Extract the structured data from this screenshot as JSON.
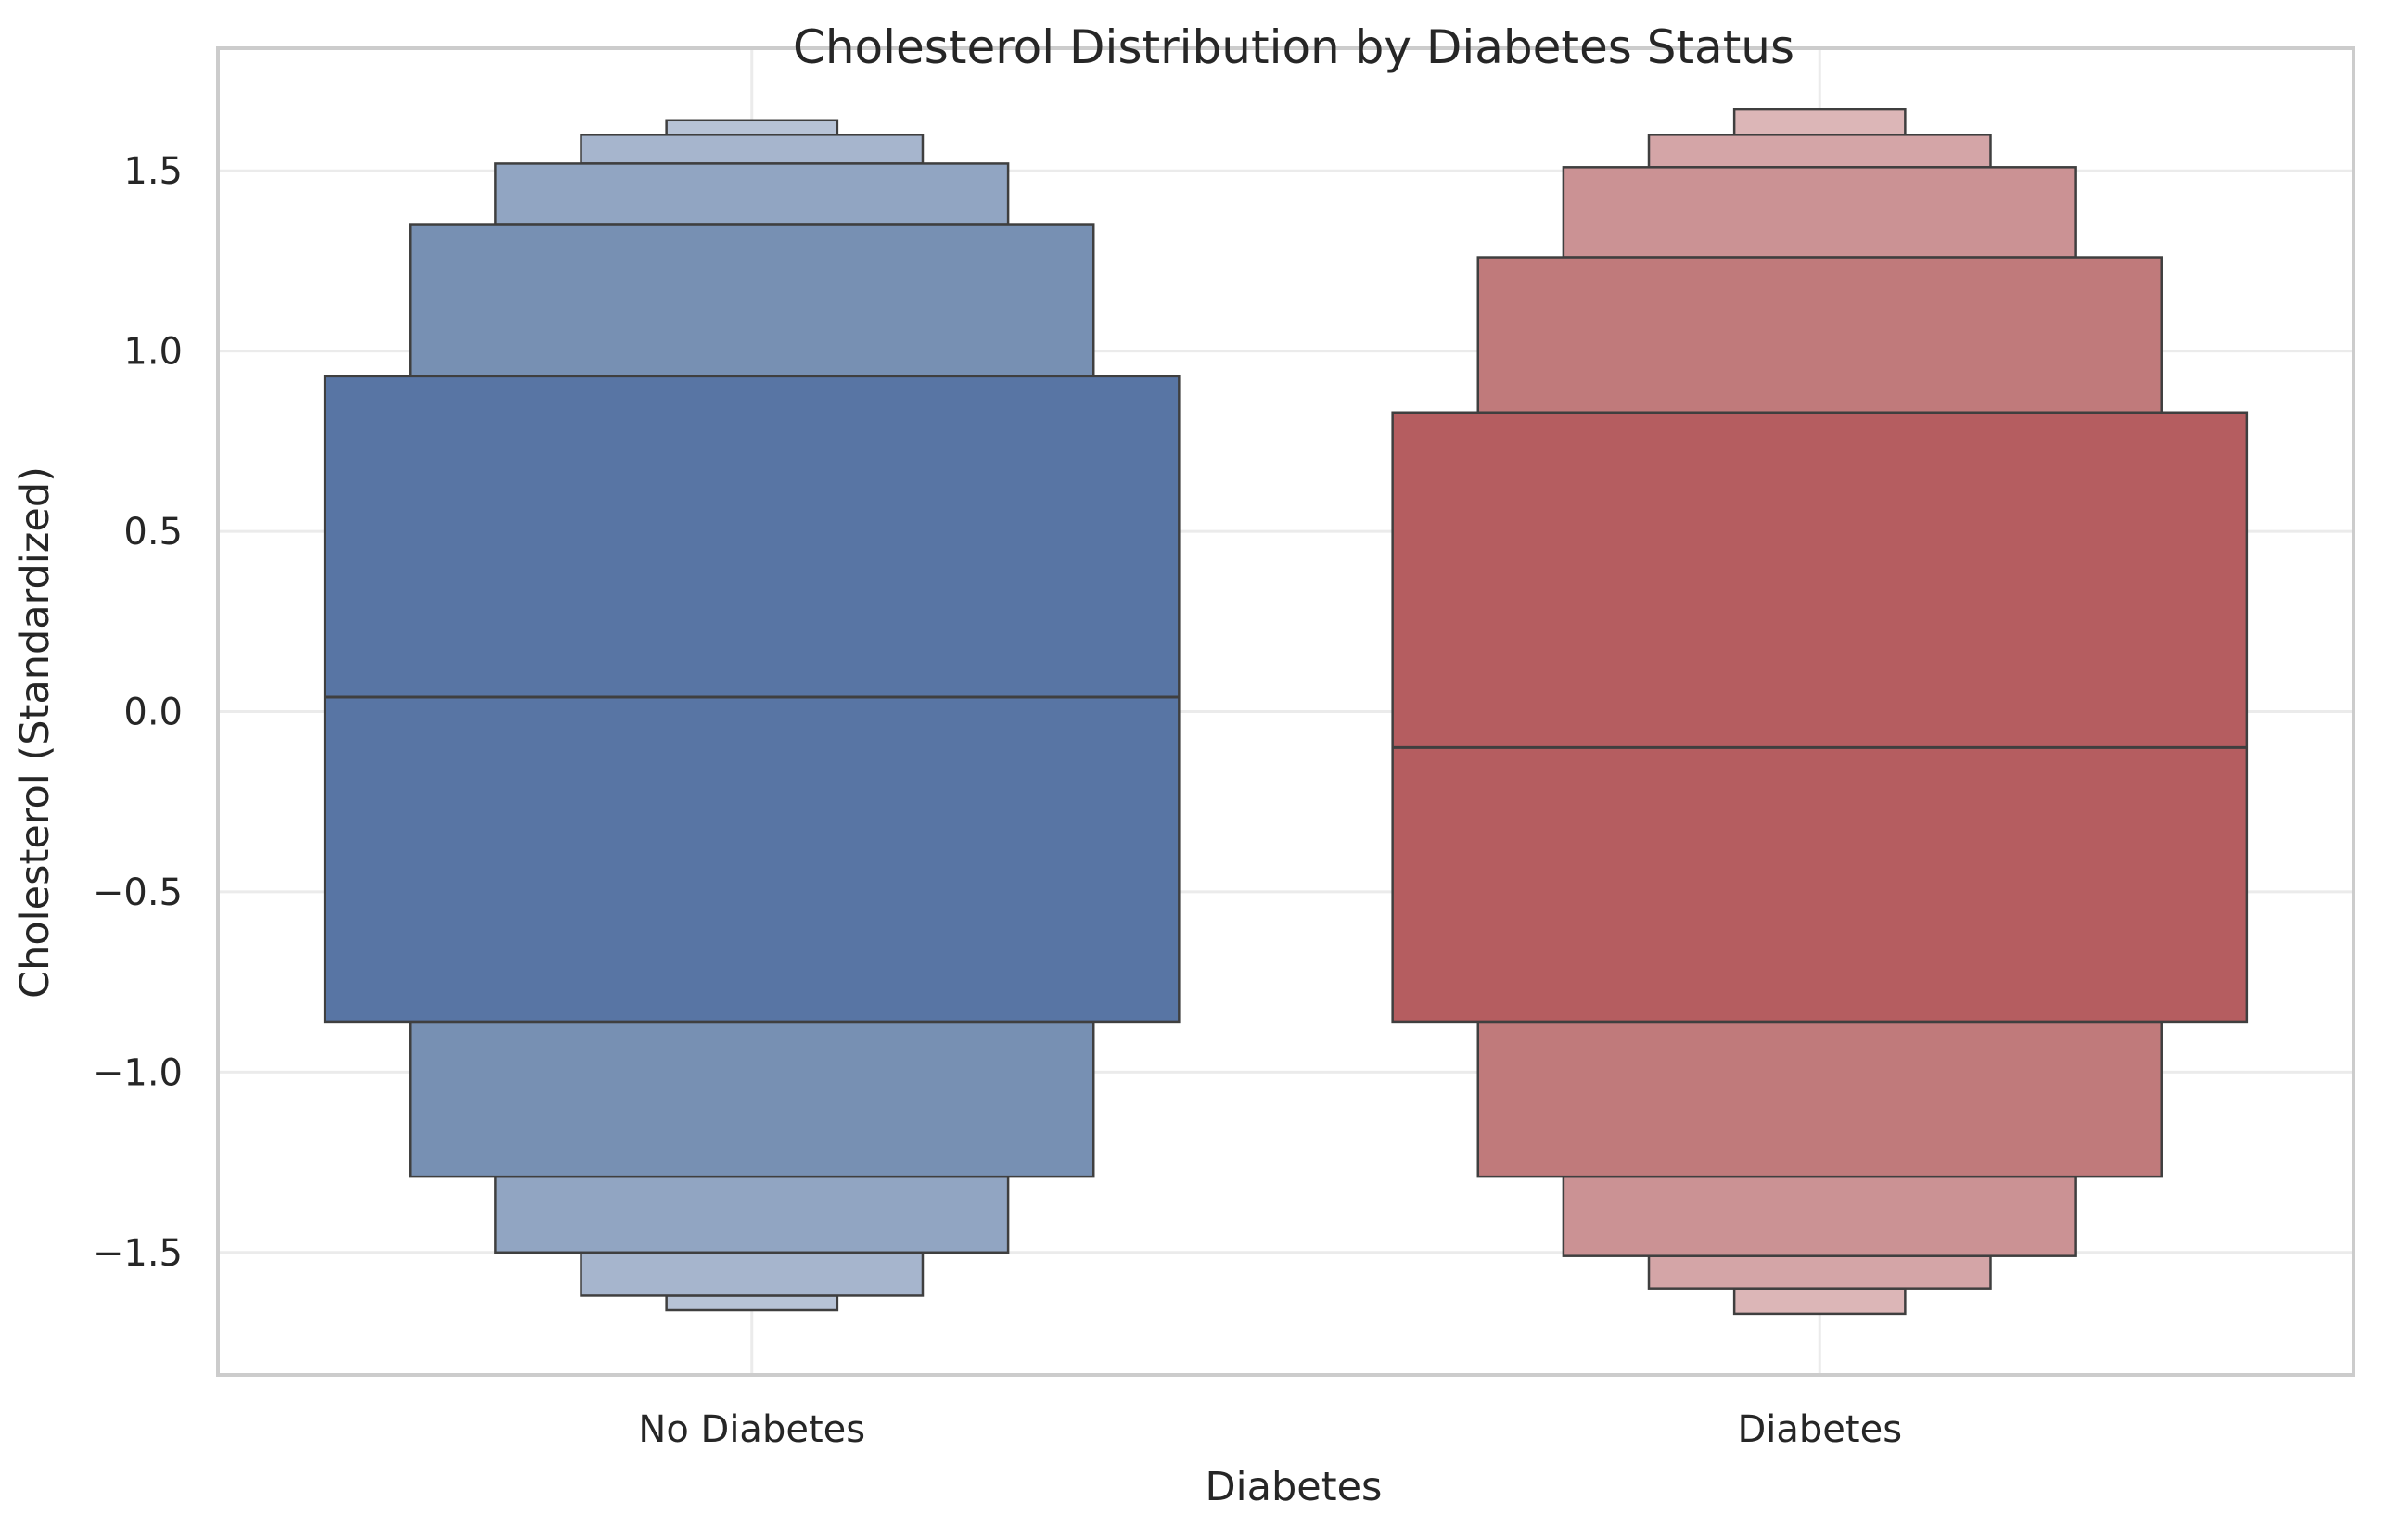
{
  "chart_data": {
    "type": "boxen",
    "title": "Cholesterol Distribution by Diabetes Status",
    "xlabel": "Diabetes",
    "ylabel": "Cholesterol (Standardized)",
    "ylim": [
      -1.84,
      1.84
    ],
    "yticks": [
      1.5,
      1.0,
      0.5,
      0.0,
      -0.5,
      -1.0,
      -1.5
    ],
    "ytick_labels": [
      "1.5",
      "1.0",
      "0.5",
      "0.0",
      "−0.5",
      "−1.0",
      "−1.5"
    ],
    "grid": true,
    "categories": [
      "No Diabetes",
      "Diabetes"
    ],
    "series": [
      {
        "category": "No Diabetes",
        "median": 0.04,
        "levels": [
          {
            "low": -0.86,
            "high": 0.93
          },
          {
            "low": -1.29,
            "high": 1.35
          },
          {
            "low": -1.5,
            "high": 1.52
          },
          {
            "low": -1.62,
            "high": 1.6
          },
          {
            "low": -1.66,
            "high": 1.64
          }
        ]
      },
      {
        "category": "Diabetes",
        "median": -0.1,
        "levels": [
          {
            "low": -0.86,
            "high": 0.83
          },
          {
            "low": -1.29,
            "high": 1.26
          },
          {
            "low": -1.51,
            "high": 1.51
          },
          {
            "low": -1.6,
            "high": 1.6
          },
          {
            "low": -1.67,
            "high": 1.67
          }
        ]
      }
    ],
    "colors": {
      "No Diabetes": [
        "#5875a4",
        "#7790b3",
        "#91a5c2",
        "#a6b5cd",
        "#b7c3d6"
      ],
      "Diabetes": [
        "#b55d60",
        "#c07a7b",
        "#cb9294",
        "#d4a5a7",
        "#dcb6b7"
      ]
    }
  }
}
